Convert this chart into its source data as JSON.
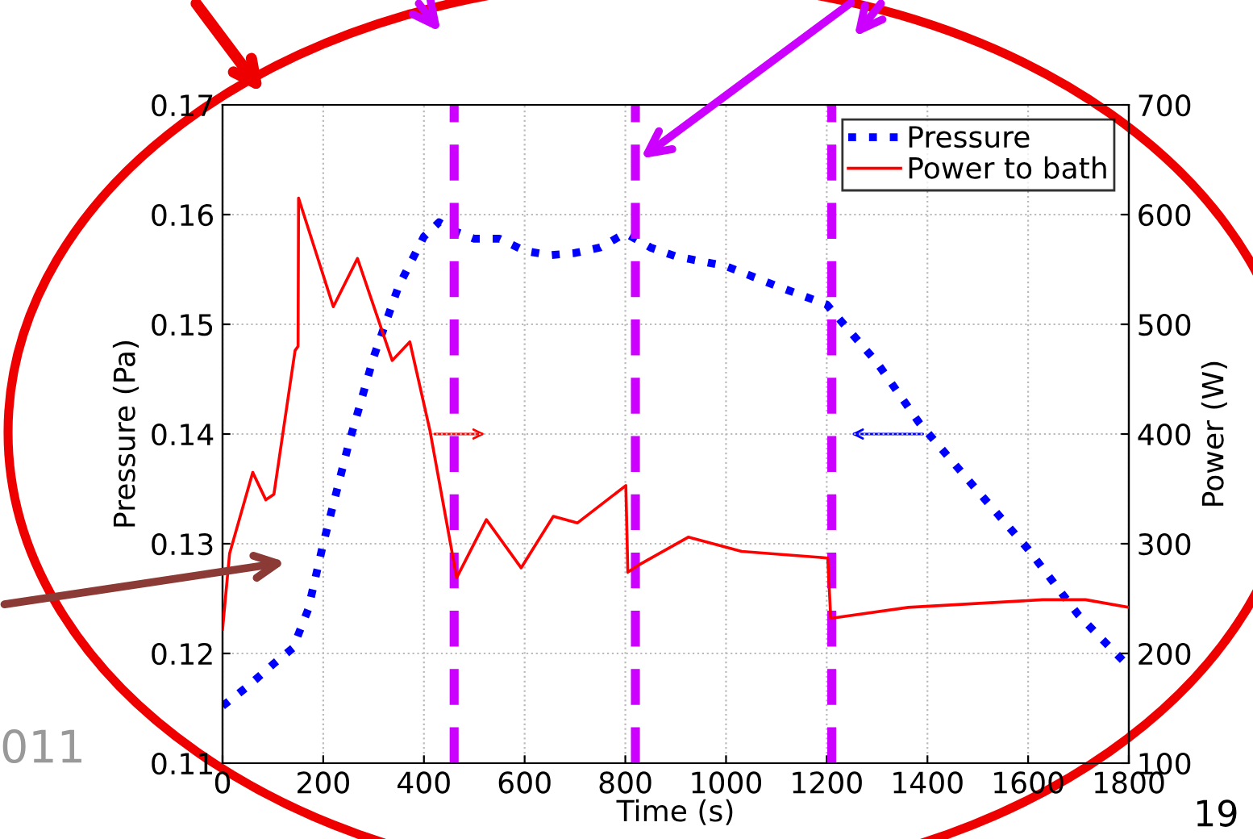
{
  "chart_data": {
    "type": "line",
    "xlabel": "Time (s)",
    "ylabel": "Pressure (Pa)",
    "y2label": "Power (W)",
    "xlim": [
      0,
      1800
    ],
    "xticks": [
      0,
      200,
      400,
      600,
      800,
      1000,
      1200,
      1400,
      1600,
      1800
    ],
    "ylim": [
      0.11,
      0.17
    ],
    "yticks": [
      0.11,
      0.12,
      0.13,
      0.14,
      0.15,
      0.16,
      0.17
    ],
    "y2lim": [
      100,
      700
    ],
    "y2ticks": [
      100,
      200,
      300,
      400,
      500,
      600,
      700
    ],
    "grid": true,
    "legend": "top right",
    "series": [
      {
        "name": "Pressure",
        "color": "#0000ff",
        "line_style": "dotted",
        "x": [
          0,
          50,
          100,
          140,
          170,
          200,
          250,
          300,
          350,
          400,
          430,
          460,
          500,
          550,
          600,
          650,
          700,
          750,
          800,
          850,
          900,
          1000,
          1100,
          1200,
          1300,
          1384,
          1500,
          1600,
          1700,
          1800
        ],
        "values": [
          0.1152,
          0.117,
          0.119,
          0.1205,
          0.124,
          0.13,
          0.139,
          0.147,
          0.1535,
          0.158,
          0.1593,
          0.1585,
          0.1578,
          0.1578,
          0.1567,
          0.1563,
          0.1565,
          0.157,
          0.1583,
          0.157,
          0.1562,
          0.1553,
          0.1535,
          0.1518,
          0.1465,
          0.141,
          0.1348,
          0.1295,
          0.1235,
          0.1188
        ]
      },
      {
        "name": "Power to bath",
        "color": "#ff0000",
        "line_style": "solid",
        "axis": "y2",
        "x": [
          0,
          14,
          60,
          86,
          102,
          144,
          150,
          151,
          220,
          268,
          337,
          372,
          412,
          465,
          524,
          593,
          657,
          705,
          801,
          805,
          828,
          925,
          1031,
          1202,
          1208,
          1362,
          1629,
          1714,
          1800
        ],
        "values": [
          222,
          291,
          365,
          340,
          345,
          476,
          480,
          615,
          516,
          560,
          467,
          484,
          403,
          269,
          322,
          278,
          325,
          319,
          353,
          274,
          281,
          306,
          293,
          287,
          232,
          242,
          249,
          249,
          242
        ]
      }
    ],
    "ref_lines": [
      {
        "axis": "x",
        "value": 460,
        "color": "#cc00ff",
        "line_style": "dashed"
      },
      {
        "axis": "x",
        "value": 820,
        "color": "#cc00ff",
        "line_style": "dashed"
      },
      {
        "axis": "x",
        "value": 1210,
        "color": "#cc00ff",
        "line_style": "dashed"
      }
    ],
    "annotations": [
      "011",
      "19"
    ]
  }
}
